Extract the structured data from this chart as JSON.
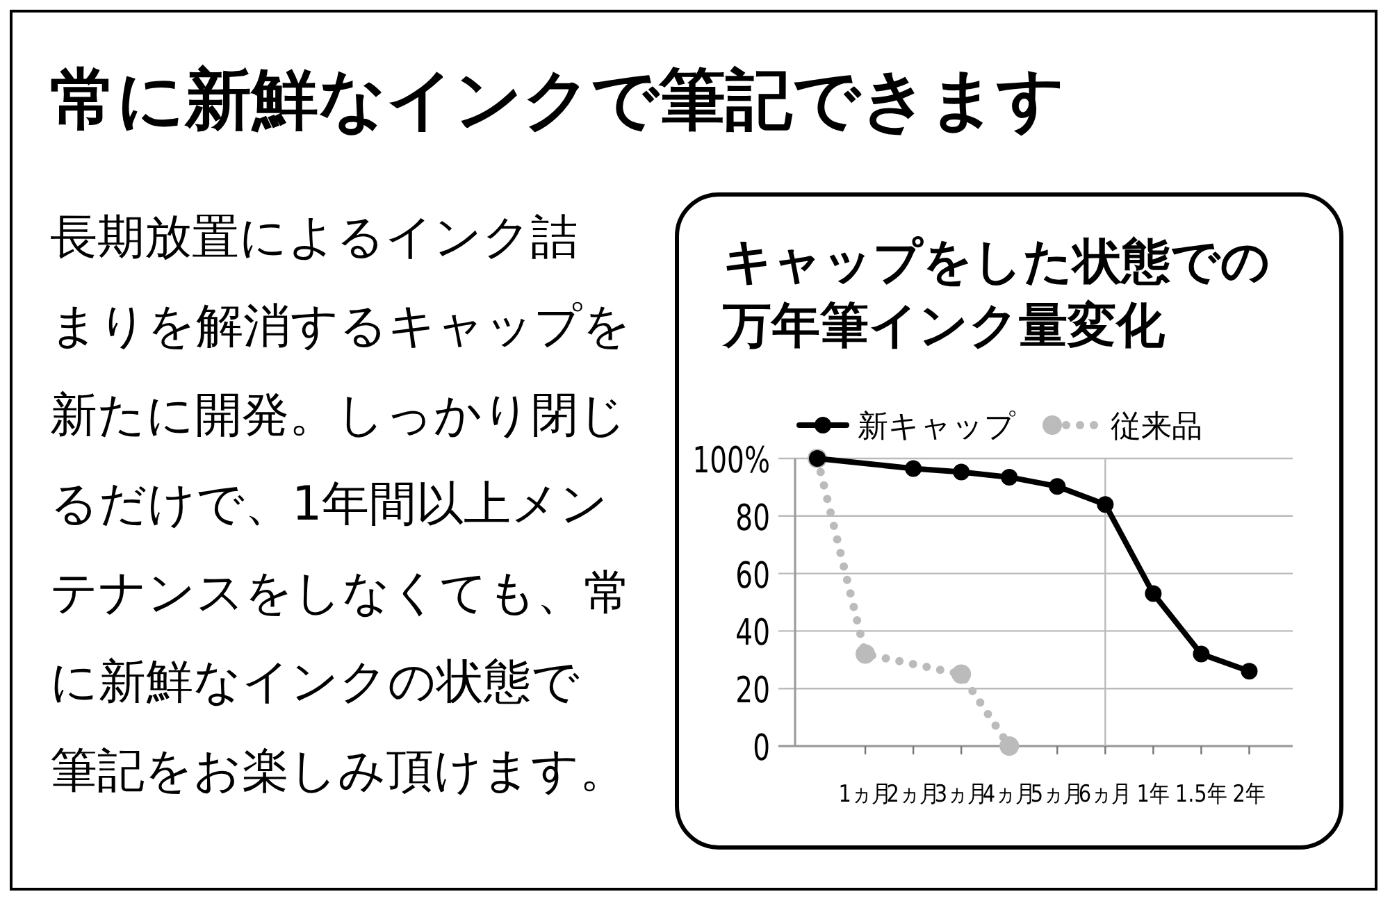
{
  "chart_data": {
    "type": "line",
    "title": "常に新鮮なインクで筆記できます",
    "subtitle": "キャップをした状態での万年筆インク量変化",
    "annotations": [
      "長期放置によるインク詰",
      "まりを解消するキャップを",
      "新たに開発。しっかり閉じ",
      "るだけで、1年間以上メン",
      "テナンスをしなくても、常",
      "に新鮮なインクの状態で",
      "筆記をお楽しみ頂けます。"
    ],
    "categories": [
      null,
      "1ヵ月",
      "2ヵ月",
      "3ヵ月",
      "4ヵ月",
      "5ヵ月",
      "6ヵ月",
      "1年",
      "1.5年",
      "2年"
    ],
    "ylim": [
      0,
      100
    ],
    "yticks": [
      0,
      20,
      40,
      60,
      {
        "value": 100,
        "label": "100%"
      },
      80
    ],
    "grid": "y",
    "legend": "top",
    "ref_lines": [
      {
        "axis": "x",
        "value": "6ヵ月",
        "color": "#bbbbbb"
      }
    ],
    "series": [
      {
        "name": "新キャップ",
        "color": "#000000",
        "marker": "circle",
        "line_style": "solid",
        "values": [
          100,
          null,
          96.5,
          95.3,
          93.5,
          90.3,
          84,
          53,
          32,
          26
        ]
      },
      {
        "name": "従来品",
        "color": "#bbbbbb",
        "marker": "circle",
        "line_style": "dotted",
        "values": [
          100,
          32,
          null,
          25,
          0,
          null,
          null,
          null,
          null,
          null
        ]
      }
    ]
  }
}
